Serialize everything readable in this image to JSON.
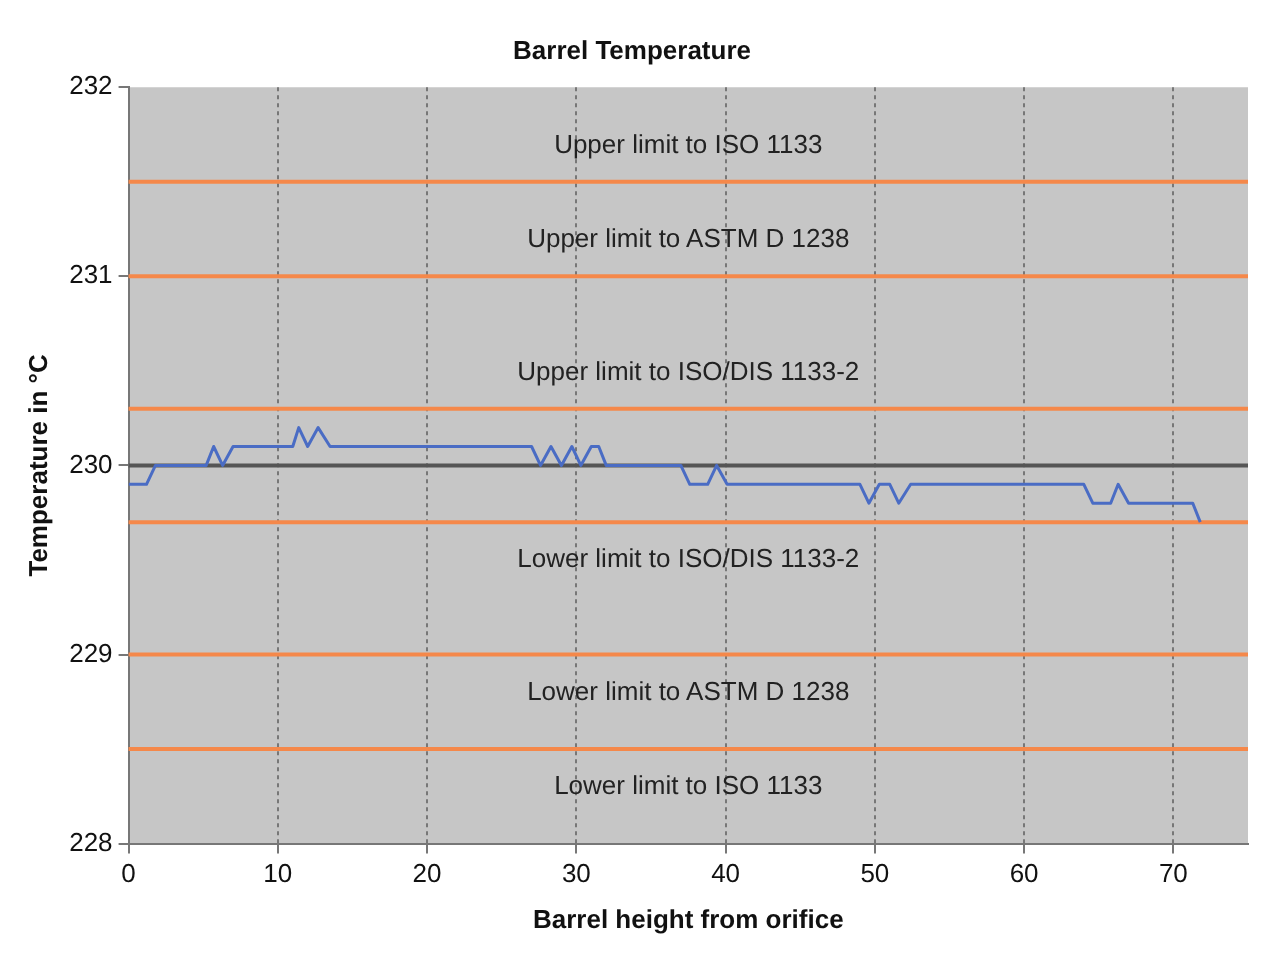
{
  "chart_data": {
    "type": "line",
    "title": "Barrel Temperature",
    "xlabel": "Barrel height from orifice",
    "ylabel": "Temperature in °C",
    "series": [
      {
        "color": "#4a6cc4",
        "x": [
          0,
          1.2,
          1.8,
          5.2,
          5.7,
          6.3,
          7,
          11,
          11.4,
          12,
          12.7,
          13.5,
          27,
          27.6,
          28.3,
          29,
          29.7,
          30.3,
          31,
          31.5,
          32,
          37,
          37.6,
          38.8,
          39.4,
          40.1,
          49,
          49.6,
          50.3,
          51,
          51.6,
          52.4,
          64,
          64.6,
          65.8,
          66.3,
          67,
          71.3,
          71.8
        ],
        "values": [
          229.9,
          229.9,
          230,
          230,
          230.1,
          230,
          230.1,
          230.1,
          230.2,
          230.1,
          230.2,
          230.1,
          230.1,
          230,
          230.1,
          230,
          230.1,
          230,
          230.1,
          230.1,
          230,
          230,
          229.9,
          229.9,
          230,
          229.9,
          229.9,
          229.8,
          229.9,
          229.9,
          229.8,
          229.9,
          229.9,
          229.8,
          229.8,
          229.9,
          229.8,
          229.8,
          229.7
        ]
      }
    ],
    "xlim": [
      0,
      75
    ],
    "xticks": [
      0,
      10,
      20,
      30,
      40,
      50,
      60,
      70
    ],
    "ylim": [
      228,
      232
    ],
    "yticks": [
      228,
      229,
      230,
      231,
      232
    ],
    "grid": "x",
    "legend": false,
    "marker": "none",
    "line_style": "solid",
    "ref_lines": [
      {
        "axis": "y",
        "value": 231.5,
        "label": "Upper limit to ISO 1133",
        "color": "#f5884a"
      },
      {
        "axis": "y",
        "value": 231,
        "label": "Upper limit to ASTM D 1238",
        "color": "#f5884a"
      },
      {
        "axis": "y",
        "value": 230.3,
        "label": "Upper limit to ISO/DIS 1133-2",
        "color": "#f5884a"
      },
      {
        "axis": "y",
        "value": 230,
        "color": "#555555"
      },
      {
        "axis": "y",
        "value": 229.7,
        "label": "Lower limit to ISO/DIS 1133-2",
        "color": "#f5884a"
      },
      {
        "axis": "y",
        "value": 229,
        "label": "Lower limit to ASTM D 1238",
        "color": "#f5884a"
      },
      {
        "axis": "y",
        "value": 228.5,
        "label": "Lower limit to ISO 1133",
        "color": "#f5884a"
      }
    ]
  }
}
